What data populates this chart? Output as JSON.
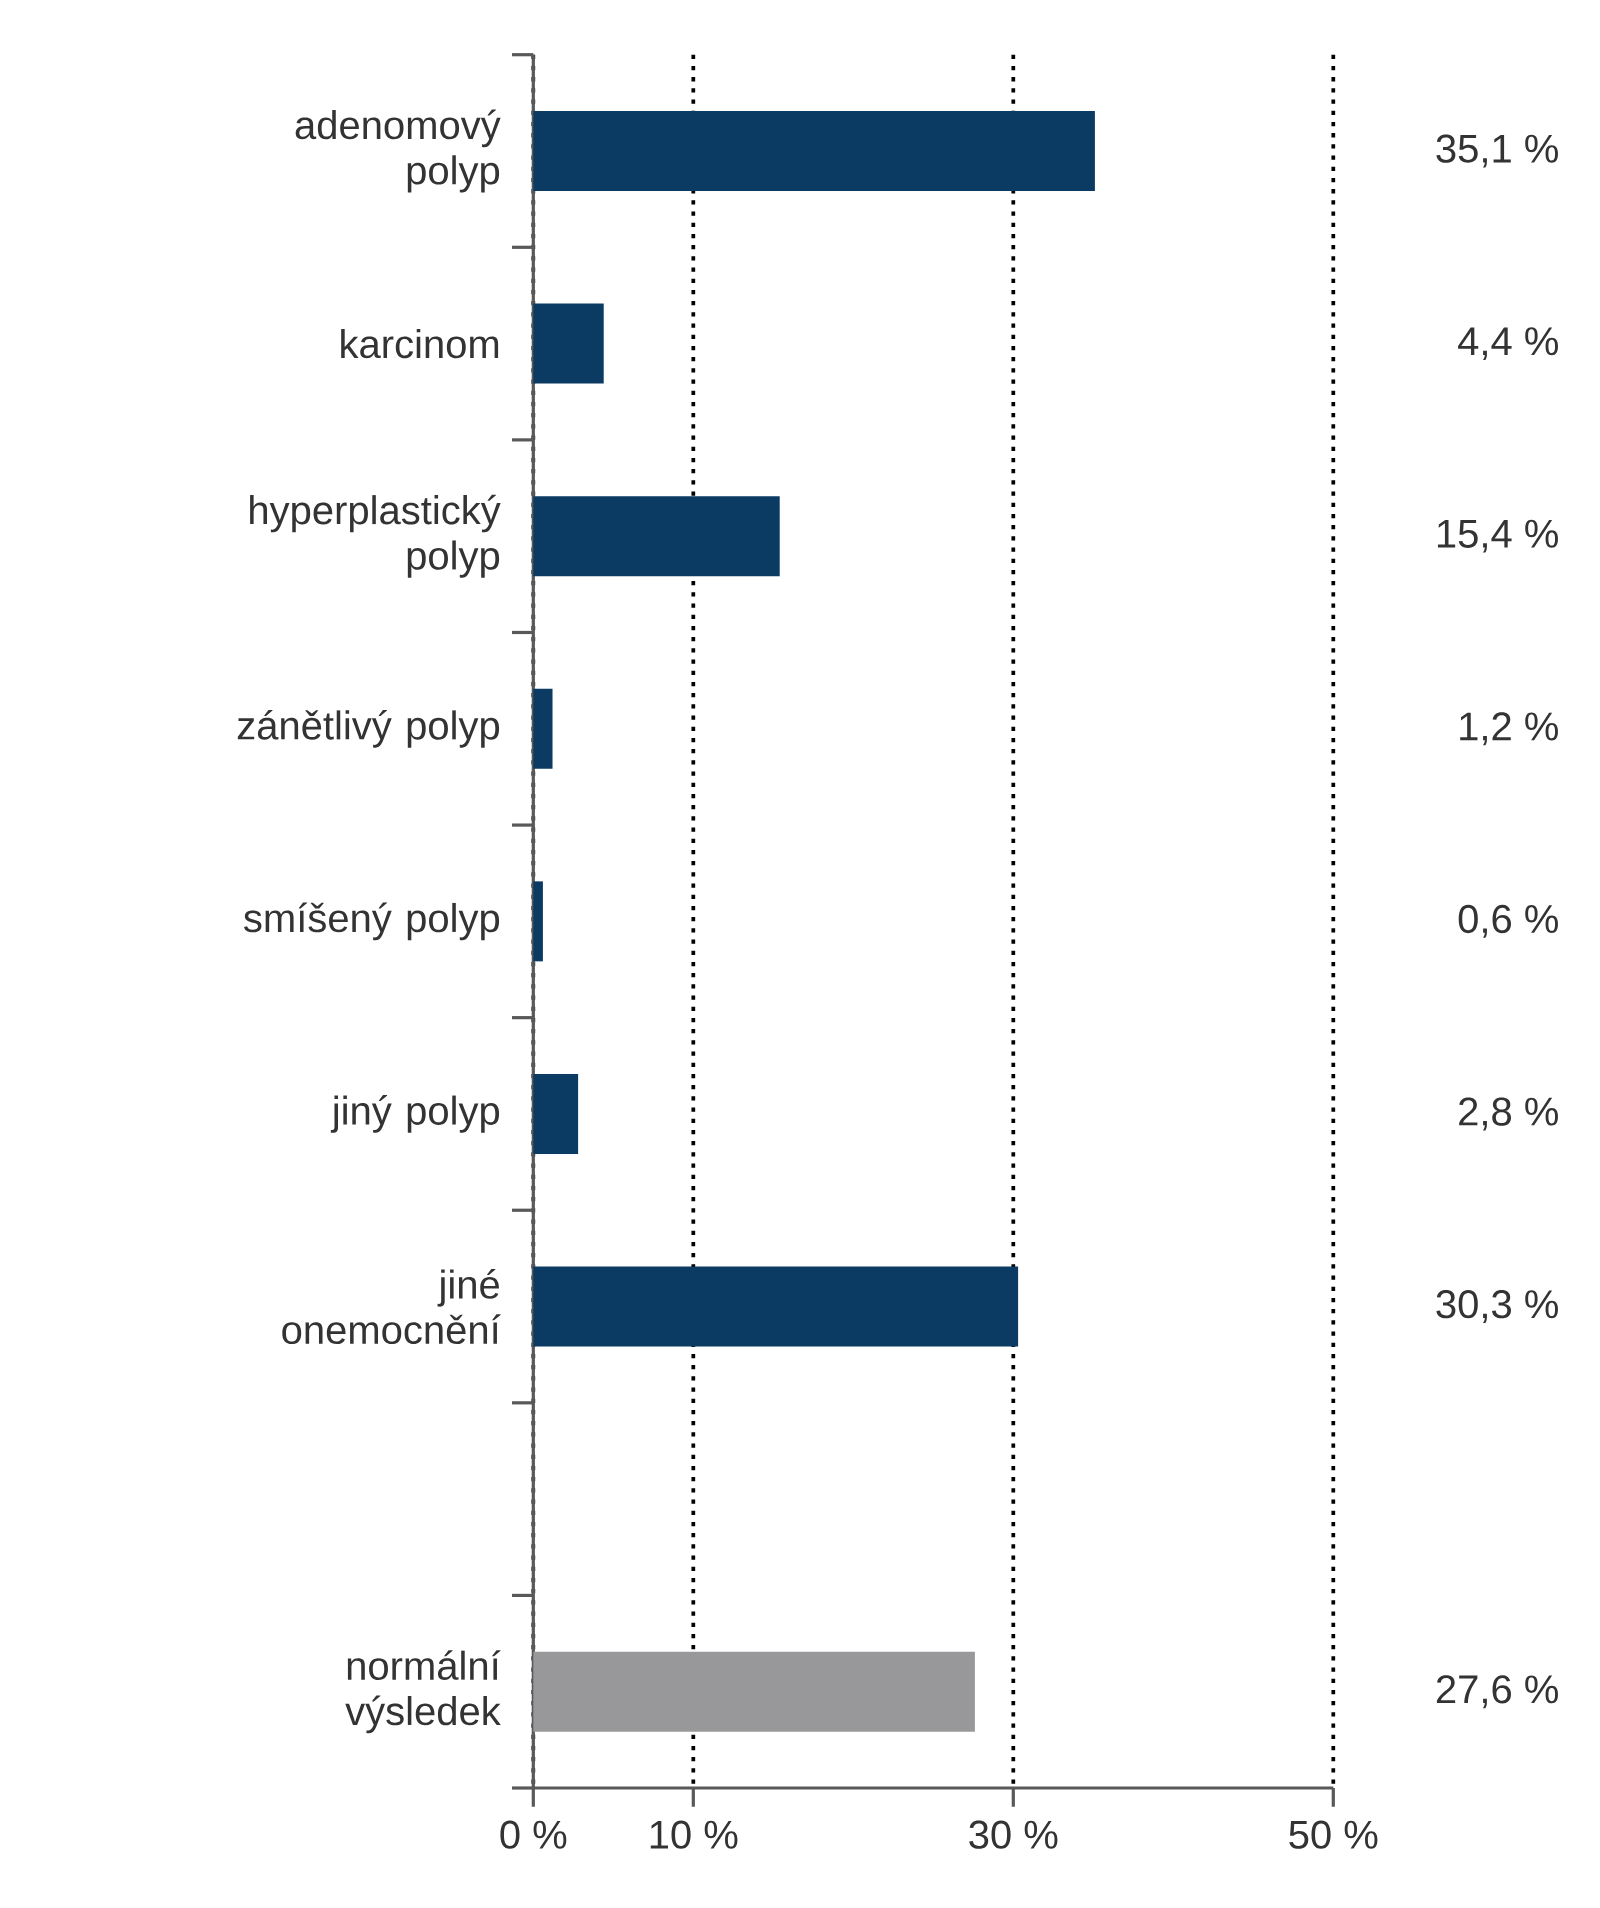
{
  "chart_data": {
    "type": "bar",
    "orientation": "horizontal",
    "categories": [
      "adenomový polyp",
      "karcinom",
      "hyperplastický polyp",
      "zánětlivý polyp",
      "smíšený polyp",
      "jiný polyp",
      "jiné onemocnění",
      null,
      "normální výsledek"
    ],
    "values": [
      35.1,
      4.4,
      15.4,
      1.2,
      0.6,
      2.8,
      30.3,
      null,
      27.6
    ],
    "colors": [
      "#0b3a63",
      "#0b3a63",
      "#0b3a63",
      "#0b3a63",
      "#0b3a63",
      "#0b3a63",
      "#0b3a63",
      "#0b3a63",
      "#98989a"
    ],
    "value_labels": [
      "35,1 %",
      "4,4 %",
      "15,4 %",
      "1,2 %",
      "0,6 %",
      "2,8 %",
      "30,3 %",
      null,
      "27,6 %"
    ],
    "xlim": [
      0,
      50
    ],
    "xticks": [
      {
        "value": 0,
        "label": "0 %"
      },
      {
        "value": 10,
        "label": "10 %"
      },
      {
        "value": 30,
        "label": "30 %"
      },
      {
        "value": 50,
        "label": "50 %"
      }
    ],
    "grid": "x"
  }
}
